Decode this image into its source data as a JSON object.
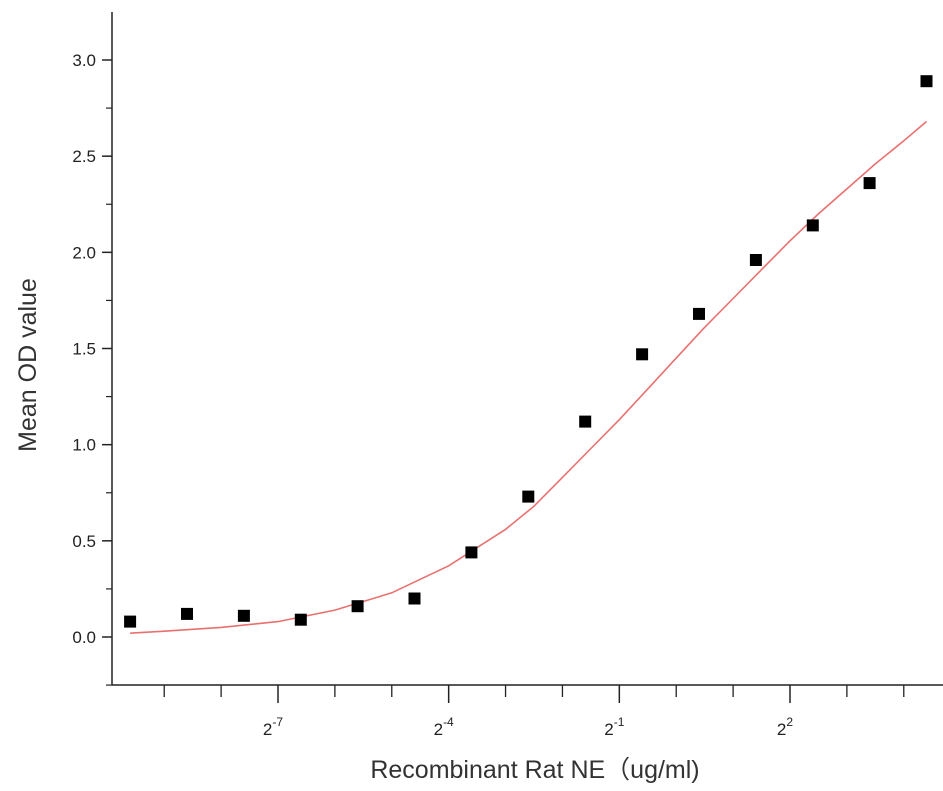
{
  "chart_data": {
    "type": "scatter",
    "xlabel": "Recombinant Rat NE（ug/ml)",
    "ylabel": "Mean OD value",
    "x_scale": "log2",
    "xlim_log2": [
      -10,
      4.5
    ],
    "ylim": [
      -0.25,
      3.2
    ],
    "x_major_ticks": [
      {
        "exp": -7,
        "label": "2",
        "sup": "-7"
      },
      {
        "exp": -4,
        "label": "2",
        "sup": "-4"
      },
      {
        "exp": -1,
        "label": "2",
        "sup": "-1"
      },
      {
        "exp": 2,
        "label": "2",
        "sup": "2"
      }
    ],
    "x_minor_ticks_log2": [
      -9,
      -8,
      -6,
      -5,
      -3,
      -2,
      0,
      1,
      3,
      4
    ],
    "y_ticks": [
      {
        "value": 0.0,
        "label": "0.0"
      },
      {
        "value": 0.5,
        "label": "0.5"
      },
      {
        "value": 1.0,
        "label": "1.0"
      },
      {
        "value": 1.5,
        "label": "1.5"
      },
      {
        "value": 2.0,
        "label": "2.0"
      },
      {
        "value": 2.5,
        "label": "2.5"
      },
      {
        "value": 3.0,
        "label": "3.0"
      }
    ],
    "series": [
      {
        "type": "scatter",
        "color": "#000000",
        "x_log2": [
          -9.6,
          -8.6,
          -7.6,
          -6.6,
          -5.6,
          -4.6,
          -3.6,
          -2.6,
          -1.6,
          -0.6,
          0.4,
          1.4,
          2.4,
          3.4,
          4.4
        ],
        "y": [
          0.08,
          0.12,
          0.11,
          0.09,
          0.16,
          0.2,
          0.44,
          0.73,
          1.12,
          1.47,
          1.68,
          1.96,
          2.14,
          2.36,
          2.89
        ]
      },
      {
        "type": "line",
        "color": "#e8716f",
        "model": "4PL",
        "x_log2": [
          -9.6,
          -9.0,
          -8.0,
          -7.0,
          -6.0,
          -5.0,
          -4.0,
          -3.0,
          -2.5,
          -2.0,
          -1.5,
          -1.0,
          -0.5,
          0.0,
          0.5,
          1.0,
          1.5,
          2.0,
          2.5,
          3.0,
          3.5,
          4.0,
          4.4
        ],
        "y": [
          0.02,
          0.03,
          0.05,
          0.08,
          0.14,
          0.23,
          0.37,
          0.56,
          0.68,
          0.83,
          0.98,
          1.13,
          1.29,
          1.45,
          1.61,
          1.76,
          1.91,
          2.06,
          2.2,
          2.33,
          2.46,
          2.58,
          2.68
        ]
      }
    ]
  }
}
